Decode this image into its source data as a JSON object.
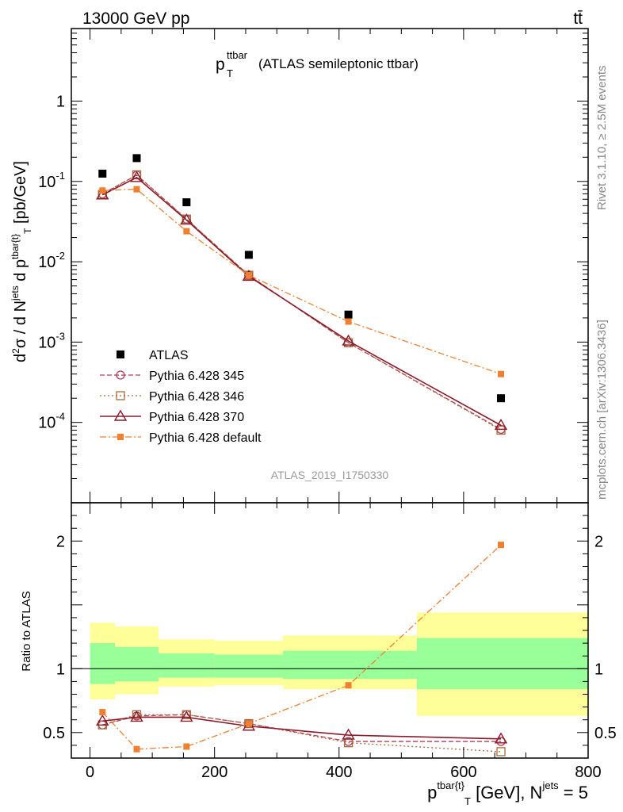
{
  "header": {
    "left": "13000 GeV pp",
    "right": "tt̄"
  },
  "plot_title": {
    "main": "p",
    "sup": "ttbar",
    "sub": "T",
    "rest": "(ATLAS semileptonic ttbar)"
  },
  "side_texts": {
    "rivet": "Rivet 3.1.10, ≥ 2.5M events",
    "mcplots": "mcplots.cern.ch [arXiv:1306.3436]"
  },
  "watermark": "ATLAS_2019_I1750330",
  "ylabel_main": "d²σ / d N^jets d p^tbar{t}_T [pb/GeV]",
  "ylabel_ratio": "Ratio to ATLAS",
  "xlabel": "p^tbar{t}_T [GeV], N^jets = 5",
  "chart_data": [
    {
      "type": "line",
      "panel": "main",
      "yscale": "log",
      "xlim": [
        -30,
        800
      ],
      "ylim": [
        1e-05,
        8
      ],
      "ytick_labels": [
        "10^-4",
        "10^-3",
        "10^-2",
        "10^-1",
        "1"
      ],
      "x": [
        20,
        75,
        155,
        255,
        415,
        660
      ],
      "series": [
        {
          "name": "ATLAS",
          "marker": "square-filled",
          "color": "#000000",
          "values": [
            0.125,
            0.195,
            0.055,
            0.0122,
            0.0022,
            0.0002
          ]
        },
        {
          "name": "Pythia 6.428 345",
          "marker": "circle-open",
          "line": "dashed",
          "color": "#b33b59",
          "values": [
            0.07,
            0.12,
            0.034,
            0.0068,
            0.00098,
            8.2e-05
          ]
        },
        {
          "name": "Pythia 6.428 346",
          "marker": "square-open",
          "line": "dotted",
          "color": "#a56c3a",
          "values": [
            0.069,
            0.121,
            0.034,
            0.0068,
            0.00098,
            8e-05
          ]
        },
        {
          "name": "Pythia 6.428 370",
          "marker": "triangle-open",
          "line": "solid",
          "color": "#8b1a2b",
          "values": [
            0.068,
            0.112,
            0.033,
            0.0066,
            0.00103,
            9.2e-05
          ]
        },
        {
          "name": "Pythia 6.428 default",
          "marker": "square-filled-small",
          "line": "dashdot",
          "color": "#f08030",
          "values": [
            0.077,
            0.08,
            0.024,
            0.0068,
            0.0018,
            0.0004
          ]
        }
      ]
    },
    {
      "type": "line",
      "panel": "ratio",
      "xlim": [
        -30,
        800
      ],
      "ylim": [
        0.3,
        2.3
      ],
      "ytick_labels": [
        "0.5",
        "1",
        "2"
      ],
      "xtick_labels": [
        "0",
        "200",
        "400",
        "600",
        "800"
      ],
      "x": [
        20,
        75,
        155,
        255,
        415,
        660
      ],
      "bands": [
        {
          "x0": 0,
          "x1": 40,
          "yellow": [
            0.76,
            1.36
          ],
          "green": [
            0.88,
            1.2
          ]
        },
        {
          "x0": 40,
          "x1": 110,
          "yellow": [
            0.8,
            1.33
          ],
          "green": [
            0.9,
            1.17
          ]
        },
        {
          "x0": 110,
          "x1": 200,
          "yellow": [
            0.86,
            1.23
          ],
          "green": [
            0.93,
            1.12
          ]
        },
        {
          "x0": 200,
          "x1": 310,
          "yellow": [
            0.87,
            1.22
          ],
          "green": [
            0.93,
            1.11
          ]
        },
        {
          "x0": 310,
          "x1": 525,
          "yellow": [
            0.84,
            1.26
          ],
          "green": [
            0.92,
            1.14
          ]
        },
        {
          "x0": 525,
          "x1": 800,
          "yellow": [
            0.63,
            1.44
          ],
          "green": [
            0.84,
            1.24
          ]
        }
      ],
      "series": [
        {
          "name": "Pythia 6.428 345",
          "color": "#b33b59",
          "values": [
            0.56,
            0.63,
            0.64,
            0.57,
            0.43,
            0.43
          ]
        },
        {
          "name": "Pythia 6.428 346",
          "color": "#a56c3a",
          "values": [
            0.56,
            0.64,
            0.64,
            0.57,
            0.42,
            0.35
          ]
        },
        {
          "name": "Pythia 6.428 370",
          "color": "#8b1a2b",
          "values": [
            0.59,
            0.62,
            0.62,
            0.55,
            0.48,
            0.45
          ]
        },
        {
          "name": "Pythia 6.428 default",
          "color": "#f08030",
          "values": [
            0.66,
            0.37,
            0.39,
            0.57,
            0.87,
            1.97
          ]
        }
      ]
    }
  ]
}
